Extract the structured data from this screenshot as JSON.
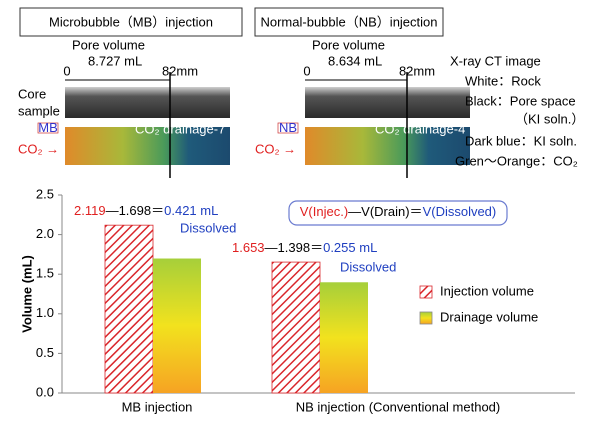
{
  "panels": [
    {
      "title": "Microbubble（MB）injection",
      "pore_label": "Pore volume",
      "pore_value": "8.727 mL",
      "start": "0",
      "end": "82mm",
      "tag": "MB",
      "drain_label": "CO₂ drainage-7",
      "gas": "CO₂ →",
      "core": [
        "Core",
        "sample"
      ]
    },
    {
      "title": "Normal-bubble（NB）injection",
      "pore_label": "Pore volume",
      "pore_value": "8.634 mL",
      "start": "0",
      "end": "82mm",
      "tag": "NB",
      "drain_label": "CO₂ drainage-4",
      "gas": "CO₂ →"
    }
  ],
  "legend_notes": [
    "X-ray CT image",
    "White：Rock",
    "Black：Pore space",
    "（KI soln.）",
    "Dark blue：KI soln.",
    "Gren～Orange：CO₂"
  ],
  "chart_data": {
    "type": "bar",
    "y_label": "Volume (mL)",
    "categories": [
      "MB injection",
      "NB injection (Conventional method)"
    ],
    "series": [
      {
        "name": "Injection volume",
        "color": "#d9262b",
        "hatch": true,
        "values": [
          2.119,
          1.653
        ]
      },
      {
        "name": "Drainage volume",
        "color": "#c8d83a",
        "gradient": [
          "#a6cf3a",
          "#f2e21e",
          "#f6a323"
        ],
        "values": [
          1.698,
          1.398
        ]
      }
    ],
    "ylim": [
      0,
      2.5
    ],
    "yticks": [
      {
        "value": 0,
        "label": "0.0"
      },
      {
        "value": 0.5,
        "label": "0.5"
      },
      {
        "value": 1,
        "label": "1.0"
      },
      {
        "value": 1.5,
        "label": "1.5"
      },
      {
        "value": 2,
        "label": "2.0"
      },
      {
        "value": 2.5,
        "label": "2.5"
      }
    ],
    "annotations": [
      {
        "parts": [
          "2.119",
          "—1.698＝",
          "0.421 mL"
        ],
        "note": "Dissolved"
      },
      {
        "parts": [
          "1.653",
          "—1.398＝",
          "0.255 mL"
        ],
        "note": "Dissolved"
      }
    ],
    "equation": [
      "V(Injec.)",
      "—V(Drain)＝",
      "V(Dissolved)"
    ]
  }
}
